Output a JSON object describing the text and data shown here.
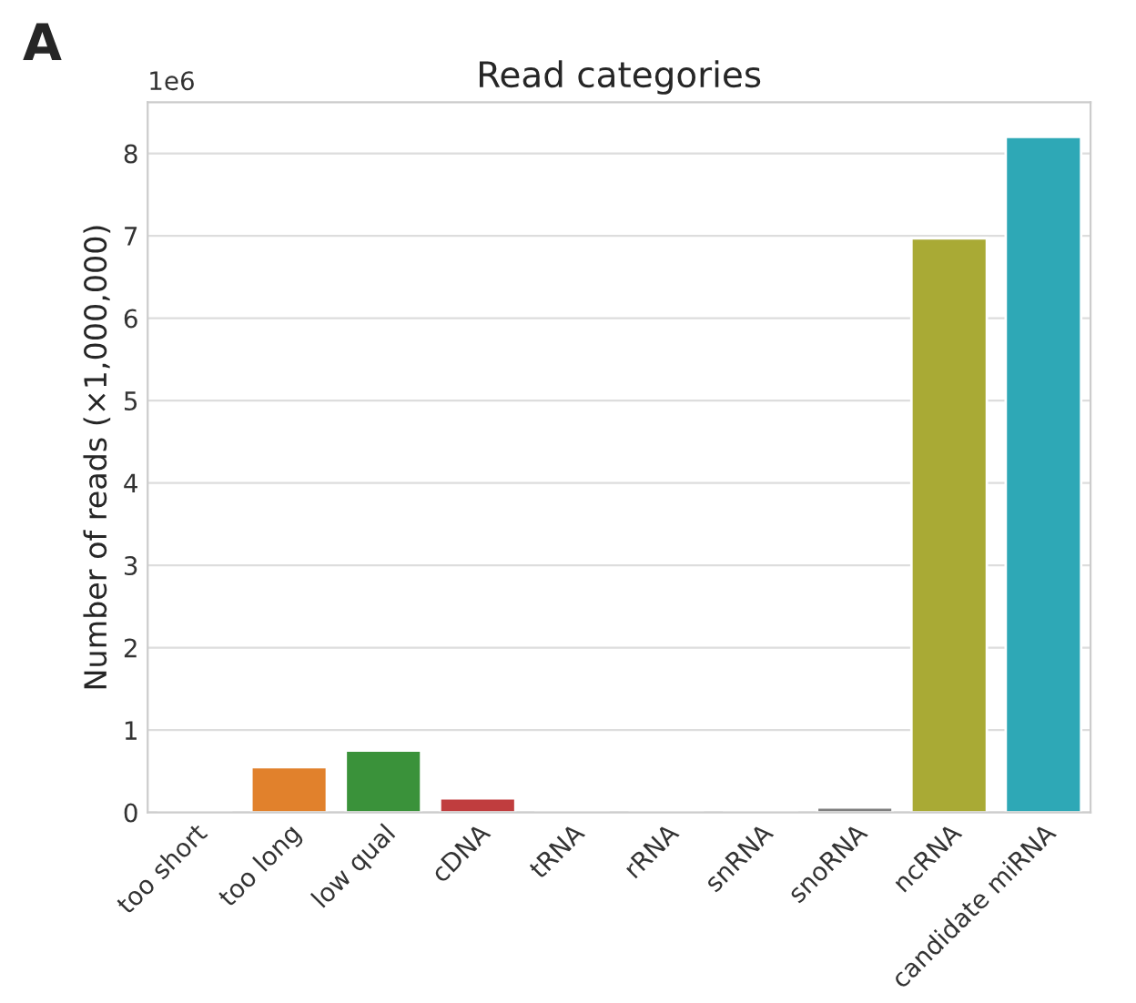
{
  "chart_data": {
    "type": "bar",
    "title": "Read categories",
    "ylabel": "Number of reads (×1,000,000)",
    "categories": [
      "too short",
      "too long",
      "low qual",
      "cDNA",
      "tRNA",
      "rRNA",
      "snRNA",
      "snoRNA",
      "ncRNA",
      "candidate miRNA"
    ],
    "values": [
      0,
      0.55,
      0.75,
      0.17,
      0,
      0,
      0,
      0.06,
      6.97,
      8.2
    ],
    "colors": [
      null,
      "#e1812c",
      "#3a923a",
      "#c03d3e",
      null,
      null,
      null,
      "#7f7f7f",
      "#a9aa35",
      "#2ea8b6"
    ],
    "ylim": [
      0,
      8.62
    ],
    "yticks": [
      0,
      1,
      2,
      3,
      4,
      5,
      6,
      7,
      8
    ],
    "grid": "y",
    "annotations": [
      "A",
      "1e6"
    ]
  }
}
